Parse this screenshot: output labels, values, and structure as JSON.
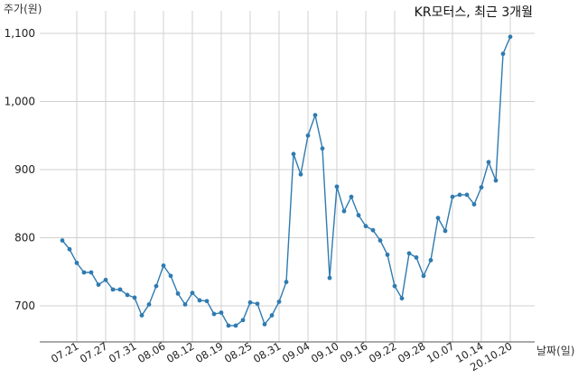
{
  "chart_data": {
    "type": "line",
    "title": "KR모터스, 최근 3개월",
    "ylabel": "주가(원)",
    "xlabel": "날짜(일)",
    "ylim": [
      650,
      1115
    ],
    "y_ticks": [
      "700",
      "800",
      "900",
      "1,000",
      "1,100"
    ],
    "y_tick_values": [
      700,
      800,
      900,
      1000,
      1100
    ],
    "grid": true,
    "line_color": "#2f7bb0",
    "x_tick_labels": [
      "07.21",
      "07.27",
      "07.31",
      "08.06",
      "08.12",
      "08.19",
      "08.25",
      "08.31",
      "09.04",
      "09.10",
      "09.16",
      "09.22",
      "09.28",
      "10.07",
      "10.14",
      "20.10.20"
    ],
    "x_tick_index": [
      2,
      6,
      10,
      14,
      18,
      22,
      26,
      30,
      34,
      38,
      42,
      46,
      50,
      54,
      58,
      62
    ],
    "series": [
      {
        "values": [
          796,
          783,
          763,
          749,
          749,
          731,
          738,
          724,
          724,
          716,
          712,
          686,
          702,
          729,
          759,
          744,
          718,
          702,
          719,
          708,
          707,
          688,
          690,
          671,
          671,
          679,
          705,
          703,
          673,
          686,
          706,
          735,
          923,
          893,
          950,
          980,
          931,
          741,
          875,
          839,
          860,
          833,
          817,
          811,
          796,
          775,
          729,
          711,
          777,
          771,
          744,
          767,
          829,
          810,
          860,
          863,
          863,
          849,
          874,
          911,
          884,
          1070,
          1095
        ]
      }
    ]
  }
}
